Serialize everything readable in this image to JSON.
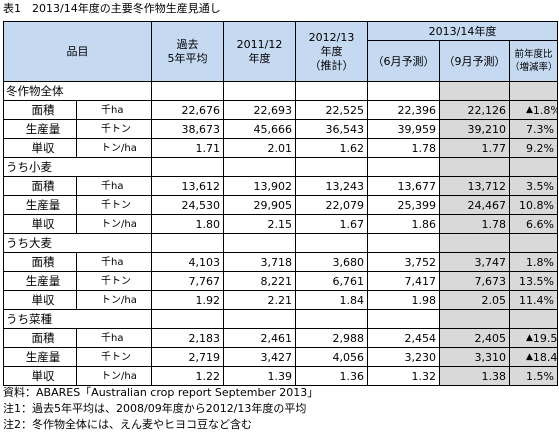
{
  "title": "表1　2013/14年度の主要冬作物生産見通し",
  "header": {
    "item": "品目",
    "avg5": "過去\n5年平均",
    "y2011": "2011/12\n年度",
    "y2012": "2012/13\n年度\n（推計）",
    "y2013": "2013/14年度",
    "june": "（6月予測）",
    "sept": "（9月予測）",
    "yoy": "前年度比\n（増減率）"
  },
  "sections": [
    {
      "name": "冬作物全体",
      "rows": [
        {
          "item": "面積",
          "unit": "千ha",
          "avg5": "22,676",
          "y2011": "22,693",
          "y2012": "22,525",
          "june": "22,396",
          "sept": "22,126",
          "tri": "▲",
          "yoy": "1.8%"
        },
        {
          "item": "生産量",
          "unit": "千トン",
          "avg5": "38,673",
          "y2011": "45,666",
          "y2012": "36,543",
          "june": "39,959",
          "sept": "39,210",
          "tri": "",
          "yoy": "7.3%"
        },
        {
          "item": "単収",
          "unit": "トン/ha",
          "avg5": "1.71",
          "y2011": "2.01",
          "y2012": "1.62",
          "june": "1.78",
          "sept": "1.77",
          "tri": "",
          "yoy": "9.2%"
        }
      ]
    },
    {
      "name": "うち小麦",
      "rows": [
        {
          "item": "面積",
          "unit": "千ha",
          "avg5": "13,612",
          "y2011": "13,902",
          "y2012": "13,243",
          "june": "13,677",
          "sept": "13,712",
          "tri": "",
          "yoy": "3.5%"
        },
        {
          "item": "生産量",
          "unit": "千トン",
          "avg5": "24,530",
          "y2011": "29,905",
          "y2012": "22,079",
          "june": "25,399",
          "sept": "24,467",
          "tri": "",
          "yoy": "10.8%"
        },
        {
          "item": "単収",
          "unit": "トン/ha",
          "avg5": "1.80",
          "y2011": "2.15",
          "y2012": "1.67",
          "june": "1.86",
          "sept": "1.78",
          "tri": "",
          "yoy": "6.6%"
        }
      ]
    },
    {
      "name": "うち大麦",
      "rows": [
        {
          "item": "面積",
          "unit": "千ha",
          "avg5": "4,103",
          "y2011": "3,718",
          "y2012": "3,680",
          "june": "3,752",
          "sept": "3,747",
          "tri": "",
          "yoy": "1.8%"
        },
        {
          "item": "生産量",
          "unit": "千トン",
          "avg5": "7,767",
          "y2011": "8,221",
          "y2012": "6,761",
          "june": "7,417",
          "sept": "7,673",
          "tri": "",
          "yoy": "13.5%"
        },
        {
          "item": "単収",
          "unit": "トン/ha",
          "avg5": "1.92",
          "y2011": "2.21",
          "y2012": "1.84",
          "june": "1.98",
          "sept": "2.05",
          "tri": "",
          "yoy": "11.4%"
        }
      ]
    },
    {
      "name": "うち菜種",
      "rows": [
        {
          "item": "面積",
          "unit": "千ha",
          "avg5": "2,183",
          "y2011": "2,461",
          "y2012": "2,988",
          "june": "2,454",
          "sept": "2,405",
          "tri": "▲",
          "yoy": "19.5%"
        },
        {
          "item": "生産量",
          "unit": "千トン",
          "avg5": "2,719",
          "y2011": "3,427",
          "y2012": "4,056",
          "june": "3,230",
          "sept": "3,310",
          "tri": "▲",
          "yoy": "18.4%"
        },
        {
          "item": "単収",
          "unit": "トン/ha",
          "avg5": "1.22",
          "y2011": "1.39",
          "y2012": "1.36",
          "june": "1.32",
          "sept": "1.38",
          "tri": "",
          "yoy": "1.5%"
        }
      ]
    }
  ],
  "notes": [
    "資料：ABARES「Australian crop report September 2013」",
    "注1：過去5年平均は、2008/09年度から2012/13年度の平均",
    "注2：冬作物全体には、えん麦やヒヨコ豆など含む"
  ]
}
